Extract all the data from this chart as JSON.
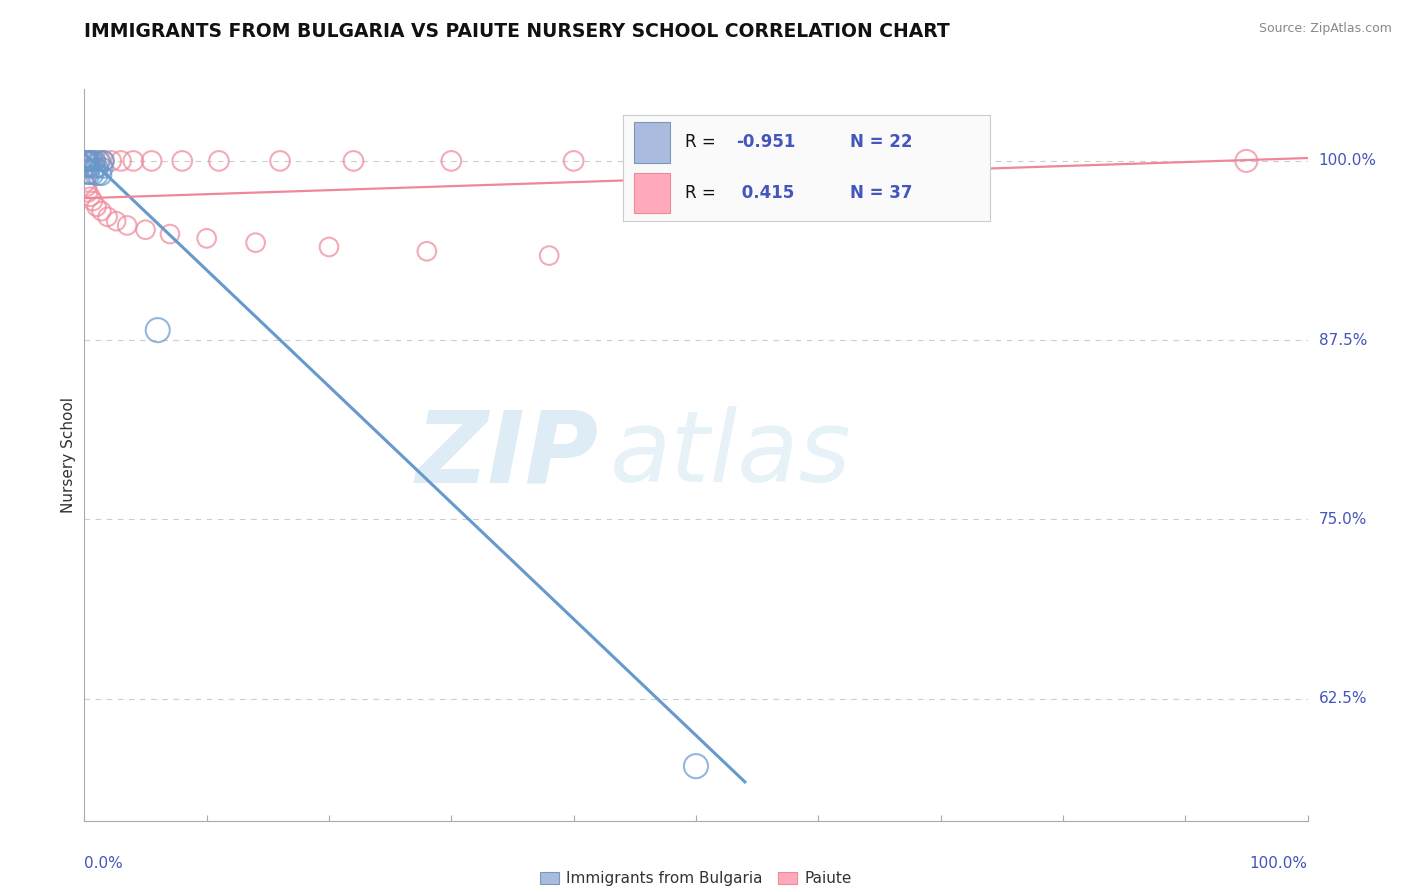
{
  "title": "IMMIGRANTS FROM BULGARIA VS PAIUTE NURSERY SCHOOL CORRELATION CHART",
  "source_text": "Source: ZipAtlas.com",
  "ylabel": "Nursery School",
  "ytick_labels": [
    "62.5%",
    "75.0%",
    "87.5%",
    "100.0%"
  ],
  "ytick_values": [
    0.625,
    0.75,
    0.875,
    1.0
  ],
  "blue_scatter_x": [
    0.001,
    0.002,
    0.002,
    0.003,
    0.003,
    0.004,
    0.004,
    0.005,
    0.005,
    0.006,
    0.007,
    0.008,
    0.009,
    0.01,
    0.011,
    0.012,
    0.013,
    0.014,
    0.015,
    0.016,
    0.06,
    0.5
  ],
  "blue_scatter_y": [
    1.0,
    1.0,
    0.995,
    1.0,
    0.99,
    1.0,
    0.995,
    1.0,
    0.99,
    0.995,
    1.0,
    0.99,
    0.995,
    1.0,
    0.99,
    0.995,
    1.0,
    0.99,
    0.995,
    1.0,
    0.882,
    0.578
  ],
  "blue_scatter_sizes": [
    200,
    200,
    160,
    200,
    160,
    200,
    160,
    200,
    160,
    160,
    200,
    160,
    200,
    160,
    200,
    160,
    200,
    200,
    200,
    200,
    300,
    300
  ],
  "pink_scatter_x": [
    0.001,
    0.002,
    0.003,
    0.004,
    0.005,
    0.007,
    0.009,
    0.012,
    0.016,
    0.022,
    0.03,
    0.04,
    0.055,
    0.08,
    0.11,
    0.16,
    0.22,
    0.3,
    0.4,
    0.001,
    0.002,
    0.003,
    0.005,
    0.007,
    0.01,
    0.014,
    0.019,
    0.026,
    0.035,
    0.05,
    0.07,
    0.1,
    0.14,
    0.2,
    0.28,
    0.38,
    0.95
  ],
  "pink_scatter_y": [
    1.0,
    1.0,
    1.0,
    1.0,
    1.0,
    1.0,
    1.0,
    1.0,
    1.0,
    1.0,
    1.0,
    1.0,
    1.0,
    1.0,
    1.0,
    1.0,
    1.0,
    1.0,
    1.0,
    0.985,
    0.982,
    0.978,
    0.975,
    0.972,
    0.968,
    0.965,
    0.961,
    0.958,
    0.955,
    0.952,
    0.949,
    0.946,
    0.943,
    0.94,
    0.937,
    0.934,
    1.0
  ],
  "pink_scatter_sizes": [
    200,
    200,
    200,
    200,
    200,
    200,
    200,
    200,
    200,
    200,
    200,
    200,
    200,
    200,
    200,
    200,
    200,
    200,
    200,
    180,
    180,
    180,
    180,
    180,
    180,
    180,
    180,
    180,
    180,
    180,
    180,
    180,
    180,
    180,
    180,
    180,
    250
  ],
  "blue_line_x": [
    0.0,
    0.54
  ],
  "blue_line_y": [
    1.005,
    0.567
  ],
  "pink_line_x": [
    0.0,
    1.0
  ],
  "pink_line_y": [
    0.974,
    1.002
  ],
  "bg_color": "#ffffff",
  "blue_color": "#6699cc",
  "pink_color": "#ee8899",
  "watermark_zip": "ZIP",
  "watermark_atlas": "atlas",
  "grid_color": "#cccccc",
  "title_fontsize": 13.5,
  "axis_label_color": "#4455bb",
  "legend_blue_label": "R = -0.951  N = 22",
  "legend_pink_label": "R =  0.415  N = 37",
  "bottom_label_blue": "Immigrants from Bulgaria",
  "bottom_label_pink": "Paiute",
  "xlim": [
    0.0,
    1.0
  ],
  "ylim": [
    0.54,
    1.05
  ]
}
